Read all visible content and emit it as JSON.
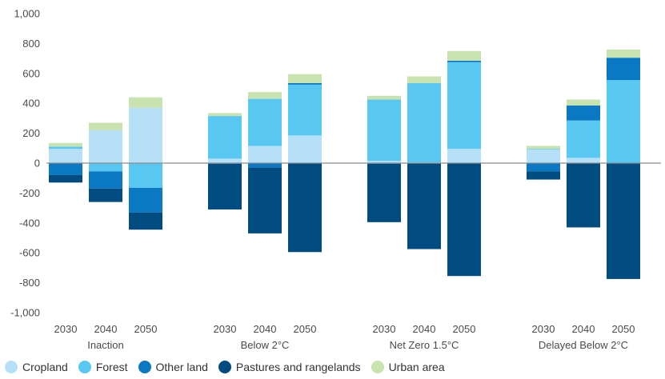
{
  "chart_data": {
    "type": "bar",
    "stacked": true,
    "title": "",
    "xlabel": "",
    "ylabel": "",
    "ylim": [
      -1000,
      1000
    ],
    "yticks": [
      1000,
      800,
      600,
      400,
      200,
      0,
      -200,
      -400,
      -600,
      -800,
      -1000
    ],
    "ytick_labels": [
      "1,000",
      "800",
      "600",
      "400",
      "200",
      "0",
      "-200",
      "-400",
      "-600",
      "-800",
      "-1,000"
    ],
    "grid": false,
    "legend_position": "bottom",
    "groups": [
      "Inaction",
      "Below 2°C",
      "Net Zero 1.5°C",
      "Delayed Below 2°C"
    ],
    "years": [
      "2030",
      "2040",
      "2050"
    ],
    "categories": [
      "Inaction 2030",
      "Inaction 2040",
      "Inaction 2050",
      "Below 2°C 2030",
      "Below 2°C 2040",
      "Below 2°C 2050",
      "Net Zero 1.5°C 2030",
      "Net Zero 1.5°C 2040",
      "Net Zero 1.5°C 2050",
      "Delayed Below 2°C 2030",
      "Delayed Below 2°C 2040",
      "Delayed Below 2°C 2050"
    ],
    "series": [
      {
        "name": "Cropland",
        "color": "#b5e0f7",
        "values": [
          95,
          220,
          370,
          30,
          115,
          185,
          15,
          5,
          95,
          90,
          35,
          0
        ]
      },
      {
        "name": "Forest",
        "color": "#58c8f2",
        "values": [
          15,
          -55,
          -165,
          285,
          315,
          340,
          410,
          530,
          580,
          5,
          250,
          555
        ]
      },
      {
        "name": "Other land",
        "color": "#0a78c2",
        "values": [
          -80,
          -115,
          -165,
          -5,
          -30,
          10,
          -5,
          0,
          10,
          -55,
          100,
          150
        ]
      },
      {
        "name": "Pastures and rangelands",
        "color": "#004c80",
        "values": [
          -50,
          -90,
          -115,
          -305,
          -440,
          -595,
          -390,
          -575,
          -755,
          -55,
          -430,
          -775
        ]
      },
      {
        "name": "Urban area",
        "color": "#c8e2b0",
        "values": [
          25,
          50,
          70,
          20,
          45,
          60,
          25,
          45,
          65,
          20,
          40,
          55
        ]
      }
    ]
  }
}
